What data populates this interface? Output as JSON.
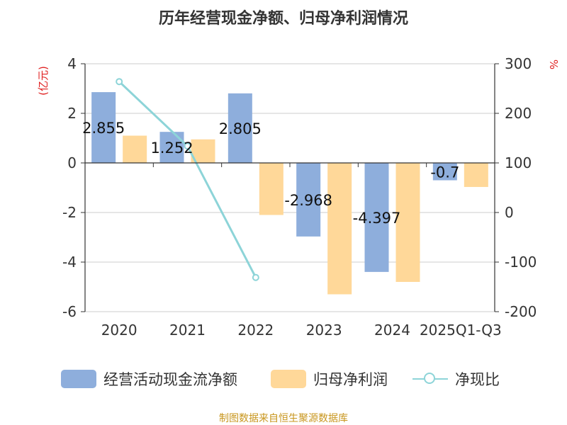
{
  "chart_data": {
    "type": "bar",
    "title": "历年经营现金净额、归母净利润情况",
    "categories": [
      "2020",
      "2021",
      "2022",
      "2023",
      "2024",
      "2025Q1-Q3"
    ],
    "y_left": {
      "label": "(亿元)",
      "ticks": [
        "4",
        "2",
        "0",
        "-2",
        "-4",
        "-6"
      ],
      "range": [
        -6,
        4
      ]
    },
    "y_right": {
      "label": "%",
      "ticks": [
        "300",
        "200",
        "100",
        "0",
        "-100",
        "-200"
      ],
      "range": [
        -200,
        300
      ]
    },
    "grid": true,
    "legend_position": "bottom",
    "series": [
      {
        "name": "经营活动现金流净额",
        "type": "bar",
        "axis": "left",
        "color": "#8eaedc",
        "values": [
          2.855,
          1.252,
          2.805,
          -2.968,
          -4.397,
          -0.7
        ],
        "labels": [
          "2.855",
          "1.252",
          "2.805",
          "-2.968",
          "-4.397",
          "-0.7"
        ]
      },
      {
        "name": "归母净利润",
        "type": "bar",
        "axis": "left",
        "color": "#ffd899",
        "values": [
          1.1,
          0.95,
          -2.1,
          -5.3,
          -4.8,
          -0.97
        ]
      },
      {
        "name": "净现比",
        "type": "line",
        "axis": "right",
        "color": "#8dd4d8",
        "values": [
          264,
          134,
          -131,
          null,
          null,
          null
        ]
      }
    ]
  },
  "source": "制图数据来自恒生聚源数据库"
}
